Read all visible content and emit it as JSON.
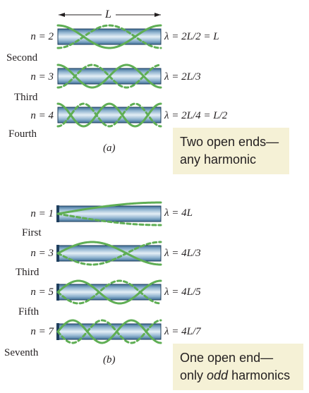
{
  "top_dimension_label": "L",
  "panel_a": {
    "label": "(a)",
    "caption_line1": "Two open ends—",
    "caption_line2": "any harmonic",
    "rows": [
      {
        "n_label": "n = 2",
        "name": "Second",
        "lambda": "λ = 2L/2 = L"
      },
      {
        "n_label": "n = 3",
        "name": "Third",
        "lambda": "λ = 2L/3"
      },
      {
        "n_label": "n = 4",
        "name": "Fourth",
        "lambda": "λ = 2L/4 = L/2"
      }
    ]
  },
  "panel_b": {
    "label": "(b)",
    "caption_line1": "One open end—",
    "caption_line2_pre": "only ",
    "caption_line2_em": "odd",
    "caption_line2_post": " harmonics",
    "rows": [
      {
        "n_label": "n = 1",
        "name": "First",
        "lambda": "λ = 4L"
      },
      {
        "n_label": "n = 3",
        "name": "Third",
        "lambda": "λ = 4L/3"
      },
      {
        "n_label": "n = 5",
        "name": "Fifth",
        "lambda": "λ = 4L/5"
      },
      {
        "n_label": "n = 7",
        "name": "Seventh",
        "lambda": "λ = 4L/7"
      }
    ]
  },
  "colors": {
    "wave": "#5fae54",
    "tube_edge": "#1f3f5e",
    "tube_mid": "#dbe9f2",
    "tube_top": "#3f6f97",
    "caption_bg": "#f5f1d6"
  }
}
